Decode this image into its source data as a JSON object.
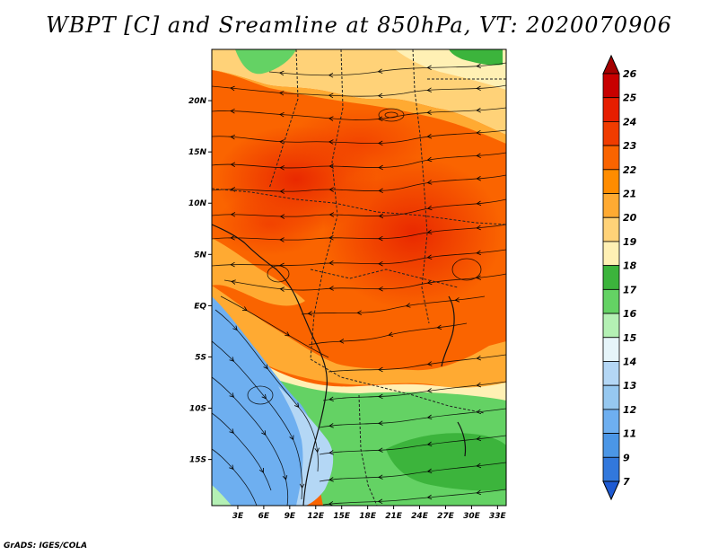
{
  "title": "WBPT [C] and Sreamline at 850hPa, VT: 2020070906",
  "credit": "GrADS: IGES/COLA",
  "map": {
    "lat_range": [
      -19.5,
      25
    ],
    "lon_range": [
      0,
      34
    ],
    "lat_ticks": [
      {
        "value": 20,
        "label": "20N"
      },
      {
        "value": 15,
        "label": "15N"
      },
      {
        "value": 10,
        "label": "10N"
      },
      {
        "value": 5,
        "label": "5N"
      },
      {
        "value": 0,
        "label": "EQ"
      },
      {
        "value": -5,
        "label": "5S"
      },
      {
        "value": -10,
        "label": "10S"
      },
      {
        "value": -15,
        "label": "15S"
      }
    ],
    "lon_ticks": [
      {
        "value": 3,
        "label": "3E"
      },
      {
        "value": 6,
        "label": "6E"
      },
      {
        "value": 9,
        "label": "9E"
      },
      {
        "value": 12,
        "label": "12E"
      },
      {
        "value": 15,
        "label": "15E"
      },
      {
        "value": 18,
        "label": "18E"
      },
      {
        "value": 21,
        "label": "21E"
      },
      {
        "value": 24,
        "label": "24E"
      },
      {
        "value": 27,
        "label": "27E"
      },
      {
        "value": 30,
        "label": "30E"
      },
      {
        "value": 33,
        "label": "33E"
      }
    ]
  },
  "colorbar": {
    "levels": [
      {
        "label": "26",
        "color": "#a50000"
      },
      {
        "label": "25",
        "color": "#c80000"
      },
      {
        "label": "24",
        "color": "#e61e00"
      },
      {
        "label": "23",
        "color": "#f03c00"
      },
      {
        "label": "22",
        "color": "#fa6400"
      },
      {
        "label": "21",
        "color": "#ff8c00"
      },
      {
        "label": "20",
        "color": "#ffaa32"
      },
      {
        "label": "19",
        "color": "#ffd278"
      },
      {
        "label": "18",
        "color": "#fff0b4"
      },
      {
        "label": "17",
        "color": "#3cb43c"
      },
      {
        "label": "16",
        "color": "#64d264"
      },
      {
        "label": "15",
        "color": "#b4f0b4"
      },
      {
        "label": "14",
        "color": "#e6f5fa"
      },
      {
        "label": "13",
        "color": "#b4d7f5"
      },
      {
        "label": "12",
        "color": "#96c8f0"
      },
      {
        "label": "11",
        "color": "#6eaff0"
      },
      {
        "label": "9",
        "color": "#4b96e6"
      },
      {
        "label": "7",
        "color": "#3278dc"
      }
    ],
    "bottom_arrow_color": "#1e5ad2"
  }
}
